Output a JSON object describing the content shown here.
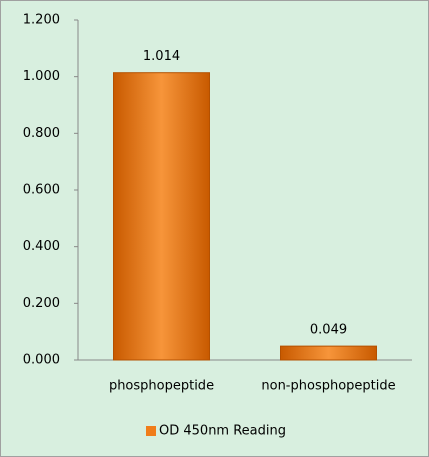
{
  "chart_data": {
    "type": "bar",
    "categories": [
      "phosphopeptide",
      "non-phosphopeptide"
    ],
    "series": [
      {
        "name": "OD 450nm Reading",
        "color": "#f07d1a",
        "values": [
          1.014,
          0.049
        ]
      }
    ],
    "ylim": [
      0,
      1.2
    ],
    "yticks": [
      {
        "value": 0,
        "label": "0.000"
      },
      {
        "value": 0.2,
        "label": "0.200"
      },
      {
        "value": 0.4,
        "label": "0.400"
      },
      {
        "value": 0.6,
        "label": "0.600"
      },
      {
        "value": 0.8,
        "label": "0.800"
      },
      {
        "value": 1,
        "label": "1.000"
      },
      {
        "value": 1.2,
        "label": "1.200"
      }
    ],
    "grid": false,
    "legend": "bottom"
  }
}
